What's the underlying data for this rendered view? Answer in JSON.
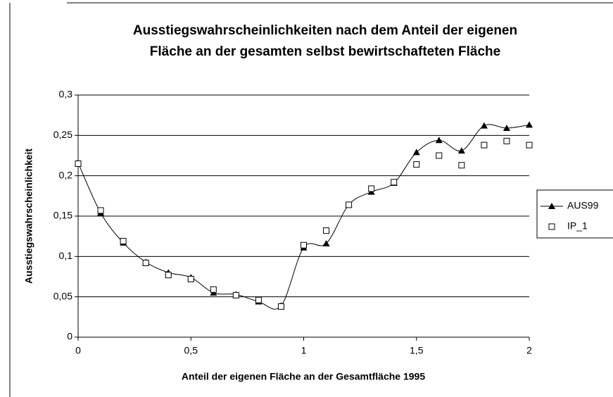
{
  "chart_data": {
    "type": "line",
    "title": [
      "Ausstiegswahrscheinlichkeiten nach dem Anteil der eigenen",
      "Fläche an der gesamten selbst bewirtschafteten Fläche"
    ],
    "x_label": "Anteil der eigenen Fläche an der Gesamtfläche 1995",
    "y_label": "Ausstiegswahrscheinlichkeit",
    "x": [
      0,
      0.1,
      0.2,
      0.3,
      0.4,
      0.5,
      0.6,
      0.7,
      0.8,
      0.9,
      1.0,
      1.1,
      1.2,
      1.3,
      1.4,
      1.5,
      1.6,
      1.7,
      1.8,
      1.9,
      2.0
    ],
    "series": [
      {
        "name": "AUS99",
        "color": "#000000",
        "marker": "triangle",
        "line": true,
        "values": [
          0.216,
          0.154,
          0.117,
          0.093,
          0.08,
          0.074,
          0.055,
          0.053,
          0.044,
          0.039,
          0.111,
          0.116,
          0.164,
          0.18,
          0.191,
          0.229,
          0.244,
          0.231,
          0.262,
          0.259,
          0.263
        ]
      },
      {
        "name": "IP_1",
        "color": "#000000",
        "marker": "square",
        "line": false,
        "values": [
          0.215,
          0.157,
          0.119,
          0.092,
          0.077,
          0.072,
          0.059,
          0.052,
          0.046,
          0.038,
          0.114,
          0.132,
          0.164,
          0.184,
          0.192,
          0.214,
          0.225,
          0.213,
          0.238,
          0.243,
          0.238
        ]
      }
    ],
    "xlim": [
      0,
      2
    ],
    "xticks": [
      0,
      {
        "value": 0.5,
        "label": "0,5"
      },
      1,
      {
        "value": 1.5,
        "label": "1,5"
      },
      2
    ],
    "ylim": [
      0,
      0.3
    ],
    "yticks": [
      0,
      {
        "value": 0.05,
        "label": "0,05"
      },
      {
        "value": 0.1,
        "label": "0,1"
      },
      {
        "value": 0.15,
        "label": "0,15"
      },
      {
        "value": 0.2,
        "label": "0,2"
      },
      {
        "value": 0.25,
        "label": "0,25"
      },
      {
        "value": 0.3,
        "label": "0,3"
      }
    ],
    "grid": true
  }
}
